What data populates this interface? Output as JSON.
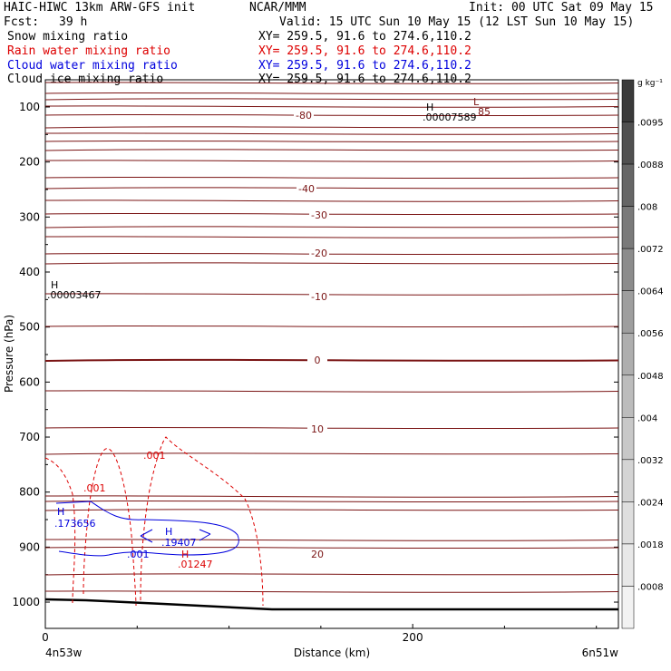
{
  "header": {
    "model_line": "HAIC-HIWC 13km ARW-GFS init",
    "org": "NCAR/MMM",
    "init": "Init: 00 UTC Sat 09 May 15",
    "fcst_label": "Fcst:",
    "fcst_value": "39 h",
    "valid": "Valid: 15 UTC Sun 10 May 15 (12 LST Sun 10 May 15)",
    "fields": [
      {
        "name": "Snow mixing ratio",
        "xy": "XY= 259.5, 91.6 to 274.6,110.2",
        "color": "#000000"
      },
      {
        "name": "Rain water mixing ratio",
        "xy": "XY= 259.5, 91.6 to 274.6,110.2",
        "color": "#dd0000"
      },
      {
        "name": "Cloud water mixing ratio",
        "xy": "XY= 259.5, 91.6 to 274.6,110.2",
        "color": "#0000dd"
      },
      {
        "name": "Cloud ice mixing ratio",
        "xy": "XY= 259.5, 91.6 to 274.6,110.2",
        "color": "#000000"
      }
    ]
  },
  "chart_data": {
    "type": "line",
    "ylabel": "Pressure (hPa)",
    "xlabel": "Distance (km)",
    "ylim": [
      1050,
      70
    ],
    "xlim": [
      0,
      312
    ],
    "y_ticks": [
      100,
      200,
      300,
      400,
      500,
      600,
      700,
      800,
      900,
      1000
    ],
    "x_ticks": [
      0,
      200
    ],
    "x_endpoints": {
      "left": "4n53w",
      "right": "6n51w"
    },
    "temperature_contours": {
      "color": "#7a1414",
      "levels": [
        -85,
        -80,
        -75,
        -70,
        -65,
        -60,
        -55,
        -50,
        -45,
        -40,
        -35,
        -30,
        -25,
        -20,
        -15,
        -10,
        -5,
        0,
        5,
        10,
        15,
        20,
        25
      ],
      "labels": [
        "-80",
        "-40",
        "-30",
        "-20",
        "-10",
        "0",
        "10",
        "20"
      ]
    },
    "annotations": [
      {
        "text": "H",
        "value": ".00007589",
        "color": "#000000"
      },
      {
        "text": "L",
        "value": "85",
        "color": "#7a1414"
      },
      {
        "text": "H",
        "value": ".00003467",
        "color": "#000000"
      },
      {
        "text": "H",
        "value": ".173656",
        "color": "#0000dd"
      },
      {
        "text": "H",
        "value": ".19407",
        "color": "#0000dd"
      },
      {
        "text": "H",
        "value": ".01247",
        "color": "#dd0000"
      },
      {
        "text": ".001",
        "value": "",
        "color": "#dd0000"
      },
      {
        "text": ".001",
        "value": "",
        "color": "#dd0000"
      },
      {
        "text": ".001",
        "value": "",
        "color": "#0000dd"
      }
    ],
    "colorbar": {
      "unit": "g kg⁻¹",
      "ticks": [
        ".0095",
        ".0088",
        ".008",
        ".0072",
        ".0064",
        ".0056",
        ".0048",
        ".004",
        ".0032",
        ".0024",
        ".0018",
        ".0008"
      ],
      "colors": [
        "#3a3a3a",
        "#505050",
        "#666666",
        "#7a7a7a",
        "#8c8c8c",
        "#9e9e9e",
        "#aeaeae",
        "#bcbcbc",
        "#c8c8c8",
        "#d4d4d4",
        "#dedede",
        "#e8e8e8",
        "#f2f2f2"
      ]
    }
  }
}
